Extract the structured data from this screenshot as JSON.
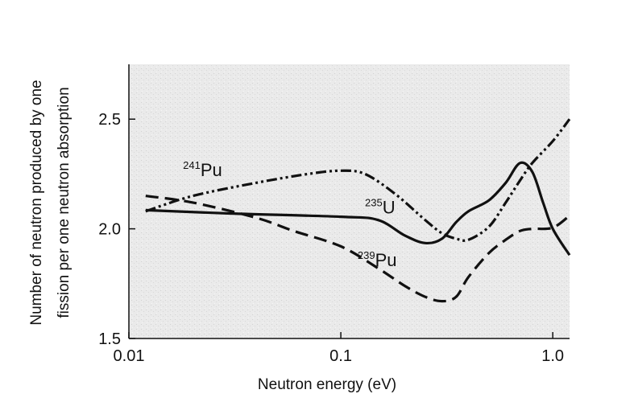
{
  "chart_data": {
    "type": "line",
    "title": "",
    "xlabel": "Neutron energy (eV)",
    "ylabel_lines": [
      "Number of neutron produced by one",
      "fission per one neutron absorption"
    ],
    "x_scale": "log",
    "xlim": [
      0.01,
      1.2
    ],
    "ylim": [
      1.5,
      2.75
    ],
    "x_ticks": [
      {
        "value": 0.01,
        "label": "0.01"
      },
      {
        "value": 0.1,
        "label": "0.1"
      },
      {
        "value": 1.0,
        "label": "1.0"
      }
    ],
    "y_ticks": [
      {
        "value": 1.5,
        "label": "1.5"
      },
      {
        "value": 2.0,
        "label": "2.0"
      },
      {
        "value": 2.5,
        "label": "2.5"
      }
    ],
    "grid": false,
    "legend": "none",
    "series": [
      {
        "mass": "235",
        "element": "U",
        "style": "solid",
        "label_at": [
          0.13,
          2.07
        ],
        "points": [
          [
            0.012,
            2.085
          ],
          [
            0.03,
            2.07
          ],
          [
            0.1,
            2.055
          ],
          [
            0.15,
            2.04
          ],
          [
            0.2,
            1.97
          ],
          [
            0.25,
            1.935
          ],
          [
            0.3,
            1.955
          ],
          [
            0.35,
            2.03
          ],
          [
            0.4,
            2.08
          ],
          [
            0.5,
            2.13
          ],
          [
            0.6,
            2.21
          ],
          [
            0.7,
            2.3
          ],
          [
            0.8,
            2.26
          ],
          [
            0.9,
            2.12
          ],
          [
            1.0,
            2.0
          ],
          [
            1.2,
            1.88
          ]
        ]
      },
      {
        "mass": "239",
        "element": "Pu",
        "style": "dashed",
        "label_at": [
          0.12,
          1.83
        ],
        "points": [
          [
            0.012,
            2.15
          ],
          [
            0.02,
            2.12
          ],
          [
            0.04,
            2.05
          ],
          [
            0.06,
            1.99
          ],
          [
            0.1,
            1.92
          ],
          [
            0.15,
            1.82
          ],
          [
            0.2,
            1.74
          ],
          [
            0.25,
            1.69
          ],
          [
            0.3,
            1.67
          ],
          [
            0.35,
            1.69
          ],
          [
            0.4,
            1.78
          ],
          [
            0.5,
            1.89
          ],
          [
            0.6,
            1.95
          ],
          [
            0.7,
            1.99
          ],
          [
            0.8,
            2.0
          ],
          [
            1.0,
            2.005
          ],
          [
            1.2,
            2.06
          ]
        ]
      },
      {
        "mass": "241",
        "element": "Pu",
        "style": "dashdotdot",
        "label_at": [
          0.018,
          2.24
        ],
        "points": [
          [
            0.012,
            2.08
          ],
          [
            0.02,
            2.15
          ],
          [
            0.04,
            2.21
          ],
          [
            0.07,
            2.25
          ],
          [
            0.1,
            2.265
          ],
          [
            0.13,
            2.25
          ],
          [
            0.18,
            2.16
          ],
          [
            0.25,
            2.04
          ],
          [
            0.3,
            1.98
          ],
          [
            0.35,
            1.955
          ],
          [
            0.4,
            1.95
          ],
          [
            0.5,
            2.01
          ],
          [
            0.6,
            2.12
          ],
          [
            0.7,
            2.22
          ],
          [
            0.8,
            2.3
          ],
          [
            1.0,
            2.4
          ],
          [
            1.2,
            2.5
          ]
        ]
      }
    ]
  }
}
